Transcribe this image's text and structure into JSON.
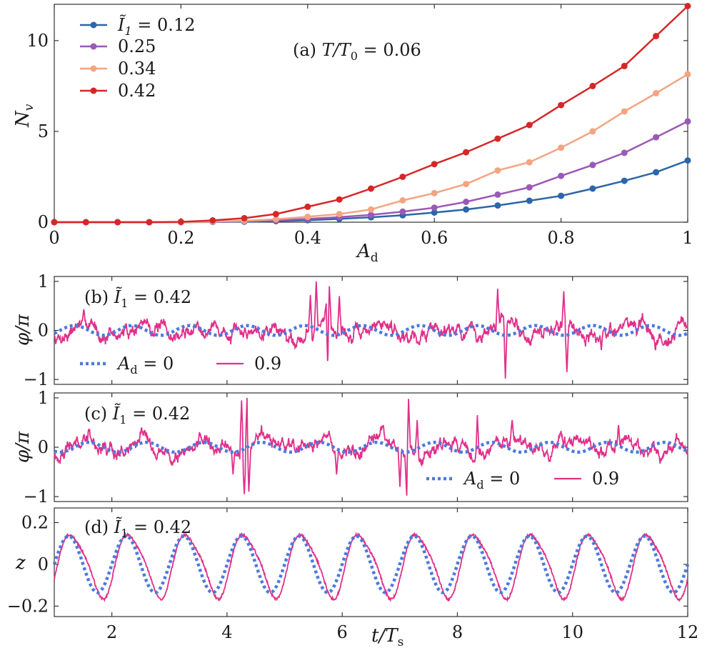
{
  "chart_data": [
    {
      "id": "a",
      "type": "line",
      "panel_label": "(a) T/T₀ = 0.06",
      "xlabel": "A_d",
      "ylabel": "N_v",
      "xlim": [
        0,
        1
      ],
      "ylim": [
        0,
        12
      ],
      "xticks": [
        0,
        0.2,
        0.4,
        0.6,
        0.8,
        1
      ],
      "xtick_labels": [
        "0",
        "0.2",
        "0.4",
        "0.6",
        "0.8",
        "1"
      ],
      "yticks": [
        0,
        5,
        10
      ],
      "ytick_labels": [
        "0",
        "5",
        "10"
      ],
      "legend_position": "top-left",
      "x": [
        0,
        0.05,
        0.1,
        0.15,
        0.2,
        0.25,
        0.3,
        0.35,
        0.4,
        0.45,
        0.5,
        0.55,
        0.6,
        0.65,
        0.7,
        0.75,
        0.8,
        0.85,
        0.9,
        0.95,
        1.0
      ],
      "series": [
        {
          "name": "Ĩ₁ = 0.12",
          "color": "#2c66a8",
          "values": [
            0,
            0,
            0,
            0,
            0,
            0.01,
            0.03,
            0.06,
            0.11,
            0.18,
            0.27,
            0.38,
            0.53,
            0.7,
            0.92,
            1.18,
            1.45,
            1.85,
            2.28,
            2.75,
            3.4
          ]
        },
        {
          "name": "0.25",
          "color": "#9b59b6",
          "values": [
            0,
            0,
            0,
            0,
            0,
            0.02,
            0.05,
            0.1,
            0.18,
            0.28,
            0.4,
            0.58,
            0.8,
            1.12,
            1.52,
            1.92,
            2.55,
            3.15,
            3.82,
            4.68,
            5.55
          ]
        },
        {
          "name": "0.34",
          "color": "#f2a582",
          "values": [
            0,
            0,
            0,
            0,
            0,
            0.03,
            0.08,
            0.16,
            0.3,
            0.45,
            0.7,
            1.2,
            1.6,
            2.1,
            2.85,
            3.3,
            4.1,
            5.0,
            6.1,
            7.1,
            8.15
          ]
        },
        {
          "name": "0.42",
          "color": "#d62728",
          "values": [
            0,
            0,
            0,
            0,
            0.02,
            0.1,
            0.22,
            0.45,
            0.85,
            1.25,
            1.85,
            2.5,
            3.2,
            3.85,
            4.6,
            5.35,
            6.45,
            7.5,
            8.6,
            10.25,
            11.9
          ]
        }
      ]
    },
    {
      "id": "b",
      "type": "line",
      "panel_label": "(b) Ĩ₁ = 0.42",
      "ylabel": "φ/π",
      "xlim": [
        1,
        12
      ],
      "ylim": [
        -1.1,
        1.1
      ],
      "xticks": [
        2,
        4,
        6,
        8,
        10,
        12
      ],
      "yticks": [
        -1,
        0,
        1
      ],
      "ytick_labels": [
        "−1",
        "0",
        "1"
      ],
      "legend_position": "bottom-left",
      "series": [
        {
          "name": "A_d = 0",
          "label": "A_d = 0",
          "style": "dotted",
          "color": "#4a7bdc",
          "kind": "sine",
          "amplitude": 0.1,
          "period": 1.0,
          "phase": 0.1
        },
        {
          "name": "0.9",
          "label": "0.9",
          "style": "solid",
          "color": "#e0308a",
          "kind": "noisy",
          "base_amplitude": 0.13,
          "noise": 0.1,
          "seed": 7,
          "spikes": [
            [
              5.45,
              0.72
            ],
            [
              5.55,
              1.0
            ],
            [
              5.72,
              0.55
            ],
            [
              5.75,
              -0.95
            ],
            [
              5.78,
              0.9
            ],
            [
              5.95,
              0.7
            ],
            [
              8.7,
              0.85
            ],
            [
              8.83,
              -0.98
            ],
            [
              9.85,
              0.8
            ],
            [
              9.9,
              -0.85
            ],
            [
              10.5,
              -0.4
            ]
          ]
        }
      ]
    },
    {
      "id": "c",
      "type": "line",
      "panel_label": "(c) Ĩ₁ = 0.42",
      "ylabel": "φ/π",
      "xlim": [
        1,
        12
      ],
      "ylim": [
        -1.1,
        1.1
      ],
      "xticks": [
        2,
        4,
        6,
        8,
        10,
        12
      ],
      "yticks": [
        -1,
        0,
        1
      ],
      "ytick_labels": [
        "−1",
        "0",
        "1"
      ],
      "legend_position": "bottom-right",
      "series": [
        {
          "name": "A_d = 0",
          "label": "A_d = 0",
          "style": "dotted",
          "color": "#4a7bdc",
          "kind": "sine",
          "amplitude": 0.1,
          "period": 1.0,
          "phase": 0.35
        },
        {
          "name": "0.9",
          "label": "0.9",
          "style": "solid",
          "color": "#e0308a",
          "kind": "noisy",
          "base_amplitude": 0.13,
          "noise": 0.1,
          "seed": 19,
          "spikes": [
            [
              4.1,
              -0.55
            ],
            [
              4.25,
              0.95
            ],
            [
              4.3,
              -0.95
            ],
            [
              4.35,
              1.0
            ],
            [
              4.38,
              -0.9
            ],
            [
              5.9,
              -0.55
            ],
            [
              7.0,
              -0.8
            ],
            [
              7.12,
              -0.98
            ],
            [
              7.15,
              0.98
            ],
            [
              7.3,
              0.55
            ],
            [
              8.35,
              0.65
            ],
            [
              8.95,
              0.55
            ],
            [
              10.8,
              0.45
            ]
          ]
        }
      ]
    },
    {
      "id": "d",
      "type": "line",
      "panel_label": "(d) Ĩ₁ = 0.42",
      "xlabel": "t/T_s",
      "ylabel": "z",
      "xlim": [
        1,
        12
      ],
      "ylim": [
        -0.25,
        0.27
      ],
      "xticks": [
        2,
        4,
        6,
        8,
        10,
        12
      ],
      "xtick_labels": [
        "2",
        "4",
        "6",
        "8",
        "10",
        "12"
      ],
      "yticks": [
        -0.2,
        0,
        0.2
      ],
      "ytick_labels": [
        "−0.2",
        "0",
        "0.2"
      ],
      "series": [
        {
          "name": "A_d = 0",
          "style": "dotted",
          "color": "#4a7bdc",
          "kind": "sine",
          "amplitude": 0.135,
          "period": 1.0,
          "phase": 0.0
        },
        {
          "name": "0.9",
          "style": "solid",
          "color": "#e0308a",
          "kind": "sine-distorted",
          "amplitude": 0.155,
          "period": 1.0,
          "phase": 0.07,
          "noise": 0.006,
          "seed": 3
        }
      ]
    }
  ],
  "text": {
    "xlabel_a": "A",
    "xlabel_a_sub": "d",
    "ylabel_a": "N",
    "ylabel_a_sub": "v",
    "panel_a_prefix": "(a) ",
    "panel_a_expr": "T/T",
    "panel_a_sub": "0",
    "panel_a_val": " = 0.06",
    "legend_a": [
      "Ĩ",
      "0.25",
      "0.34",
      "0.42"
    ],
    "legend_a_first_sub": "1",
    "legend_a_first_val": " = 0.12",
    "panel_b_prefix": "(b) ",
    "panel_c_prefix": "(c) ",
    "panel_d_prefix": "(d) ",
    "panel_I": "Ĩ",
    "panel_I_sub": "1",
    "panel_I_val": " = 0.42",
    "ylabel_phi": "φ/π",
    "ylabel_z": "z",
    "legend_bc_first": "A",
    "legend_bc_first_sub": "d",
    "legend_bc_first_val": " = 0",
    "legend_bc_second": "0.9",
    "xlabel_d": "t/T",
    "xlabel_d_sub": "s"
  }
}
